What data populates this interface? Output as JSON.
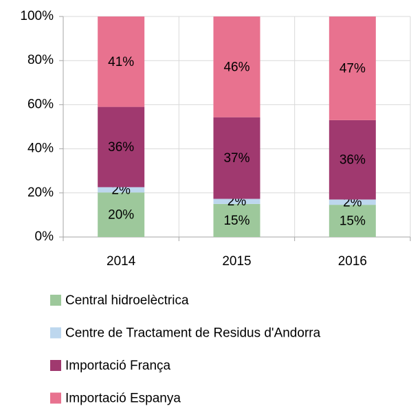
{
  "chart_data": {
    "type": "stacked_bar",
    "categories": [
      "2014",
      "2015",
      "2016"
    ],
    "series": [
      {
        "name": "Central hidroelèctrica",
        "color": "#9dc89b",
        "values": [
          20.2,
          15.0,
          14.6
        ],
        "value_labels": [
          "20%",
          "15%",
          "15%"
        ]
      },
      {
        "name": "Centre de Tractament de Residus d'Andorra",
        "color": "#bdd7ee",
        "values": [
          2.4,
          2.3,
          2.4
        ],
        "value_labels": [
          "2%",
          "2%",
          "2%"
        ]
      },
      {
        "name": "Importació França",
        "color": "#a0396f",
        "values": [
          36.4,
          37.0,
          36.0
        ],
        "value_labels": [
          "36%",
          "37%",
          "36%"
        ]
      },
      {
        "name": "Importació Espanya",
        "color": "#e8728f",
        "values": [
          41.0,
          45.7,
          47.0
        ],
        "value_labels": [
          "41%",
          "46%",
          "47%"
        ]
      }
    ],
    "ylim": [
      0,
      100
    ],
    "yticks": [
      {
        "value": 0,
        "label": "0%"
      },
      {
        "value": 20,
        "label": "20%"
      },
      {
        "value": 40,
        "label": "40%"
      },
      {
        "value": 60,
        "label": "60%"
      },
      {
        "value": 80,
        "label": "80%"
      },
      {
        "value": 100,
        "label": "100%"
      }
    ],
    "grid": true,
    "legend": "bottom"
  }
}
